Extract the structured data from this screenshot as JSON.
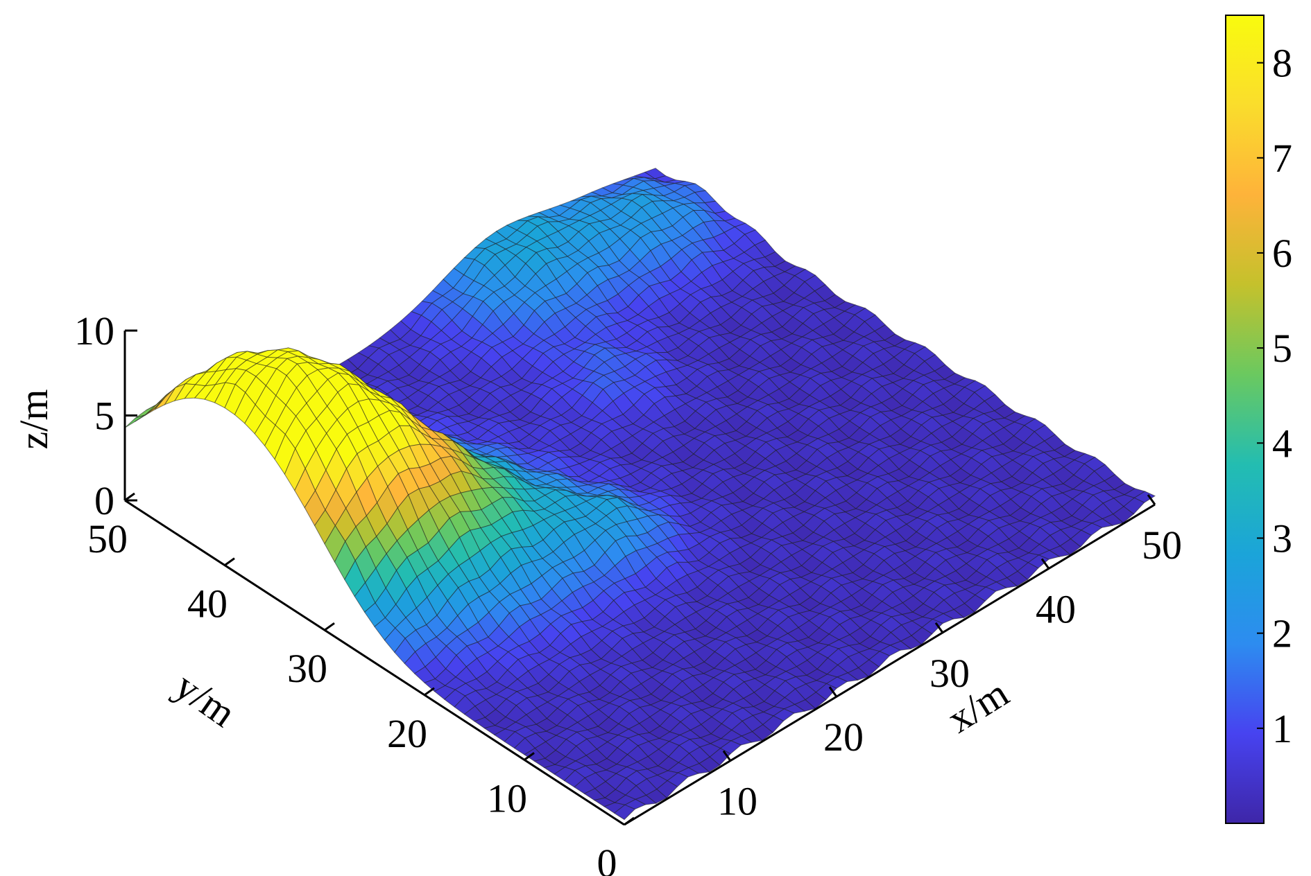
{
  "chart_data": {
    "type": "surface",
    "title": "",
    "xlabel": "x/m",
    "ylabel": "y/m",
    "zlabel": "z/m",
    "xlim": [
      0,
      50
    ],
    "ylim": [
      0,
      50
    ],
    "zlim": [
      0,
      10
    ],
    "x_ticks": [
      "10",
      "20",
      "30",
      "40",
      "50"
    ],
    "y_ticks": [
      "0",
      "10",
      "20",
      "30",
      "40",
      "50"
    ],
    "z_ticks": [
      "0",
      "5",
      "10"
    ],
    "grid_size": 50,
    "peaks": [
      {
        "x": 5,
        "y": 35,
        "height": 8.0,
        "spread": 6
      },
      {
        "x": 2,
        "y": 44,
        "height": 6.5,
        "spread": 6
      },
      {
        "x": 12,
        "y": 28,
        "height": 3.0,
        "spread": 6
      },
      {
        "x": 35,
        "y": 48,
        "height": 2.5,
        "spread": 5
      },
      {
        "x": 45,
        "y": 45,
        "height": 1.8,
        "spread": 4
      },
      {
        "x": 20,
        "y": 22,
        "height": 1.5,
        "spread": 3
      },
      {
        "x": 32,
        "y": 35,
        "height": 1.0,
        "spread": 3
      }
    ],
    "base_height": 0.3,
    "colorbar": {
      "min": 0,
      "max": 8.5,
      "ticks": [
        "1",
        "2",
        "3",
        "4",
        "5",
        "6",
        "7",
        "8"
      ],
      "colors": [
        "#3e26a8",
        "#4743f0",
        "#2d8cf0",
        "#1ba4d9",
        "#23bdb1",
        "#6bc95f",
        "#c5c12c",
        "#feb33a",
        "#fadd2c",
        "#f9fb0e"
      ]
    }
  }
}
